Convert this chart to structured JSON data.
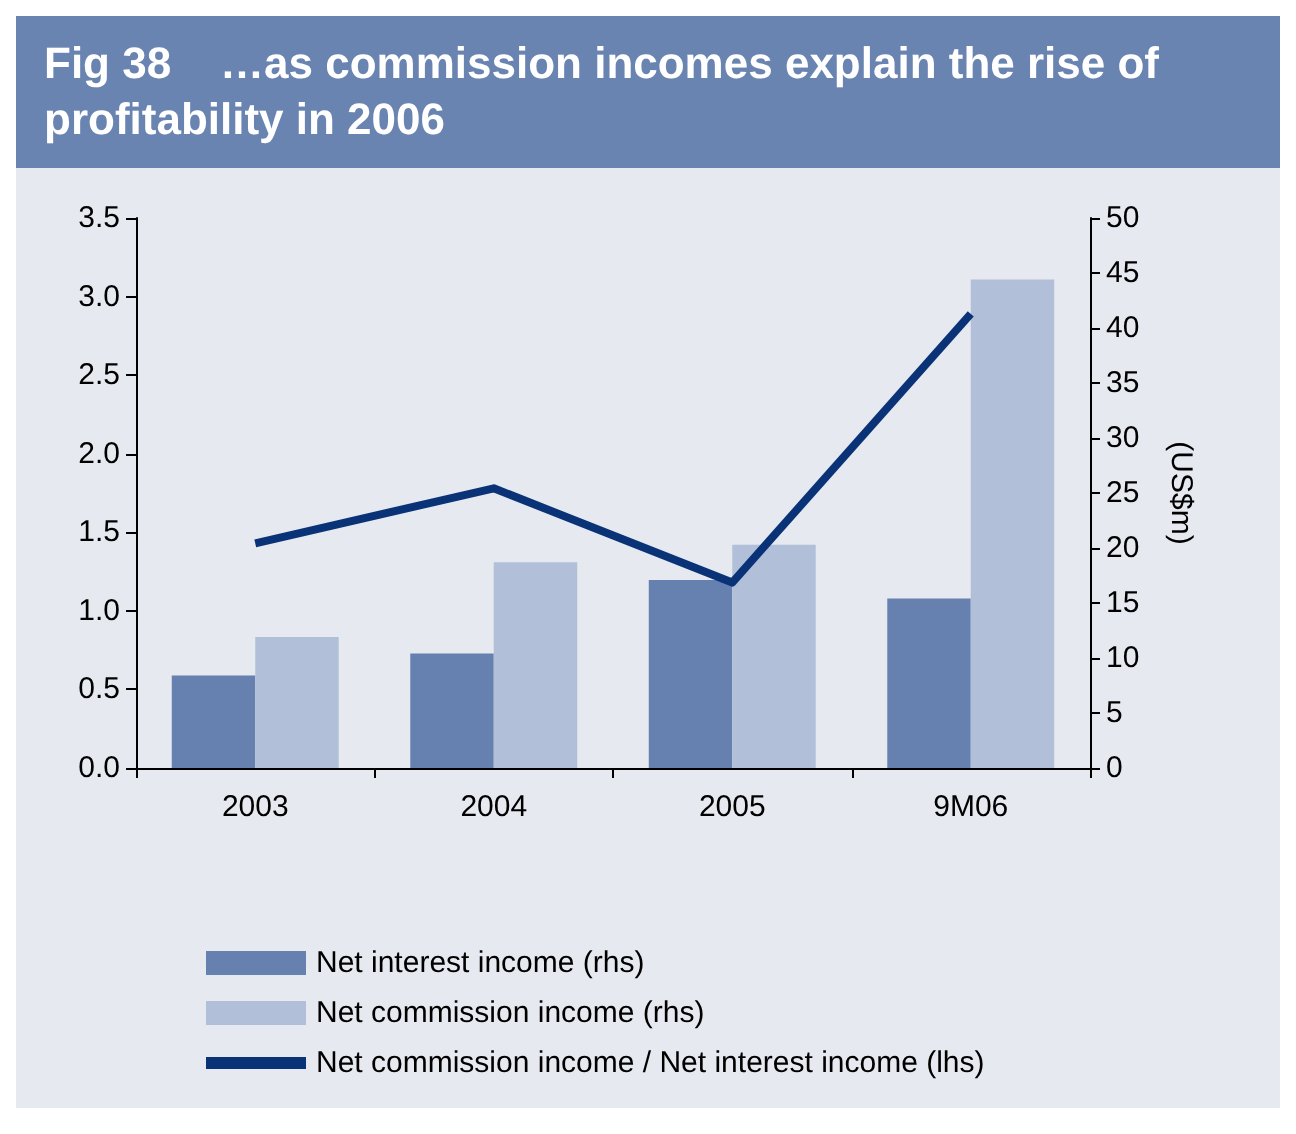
{
  "chart_data": {
    "type": "bar",
    "title": "Fig 38    …as commission incomes explain the rise of profitability in 2006",
    "y2label": "(US$m)",
    "categories": [
      "2003",
      "2004",
      "2005",
      "9M06"
    ],
    "series": [
      {
        "name": "Net interest income (rhs)",
        "type": "bar",
        "axis": "y2",
        "color": "#6680b0",
        "values": [
          8.4,
          10.4,
          17.1,
          15.4
        ]
      },
      {
        "name": "Net commission income (rhs)",
        "type": "bar",
        "axis": "y2",
        "color": "#b1bfd8",
        "values": [
          11.9,
          18.7,
          20.3,
          44.4
        ]
      },
      {
        "name": "Net commission income / Net interest income (lhs)",
        "type": "line",
        "axis": "y",
        "color": "#0a3377",
        "values": [
          1.43,
          1.78,
          1.18,
          2.89
        ]
      }
    ],
    "ylim": [
      0,
      3.5
    ],
    "yticks": [
      {
        "value": 0,
        "label": "0.0"
      },
      {
        "value": 0.5,
        "label": "0.5"
      },
      {
        "value": 1,
        "label": "1.0"
      },
      {
        "value": 1.5,
        "label": "1.5"
      },
      {
        "value": 2,
        "label": "2.0"
      },
      {
        "value": 2.5,
        "label": "2.5"
      },
      {
        "value": 3,
        "label": "3.0"
      },
      {
        "value": 3.5,
        "label": "3.5"
      }
    ],
    "y2lim": [
      0,
      50
    ],
    "y2ticks": [
      0,
      5,
      10,
      15,
      20,
      25,
      30,
      35,
      40,
      45,
      50
    ],
    "grid": false,
    "legend": "bottom",
    "marker": "none",
    "line_style": "solid"
  }
}
